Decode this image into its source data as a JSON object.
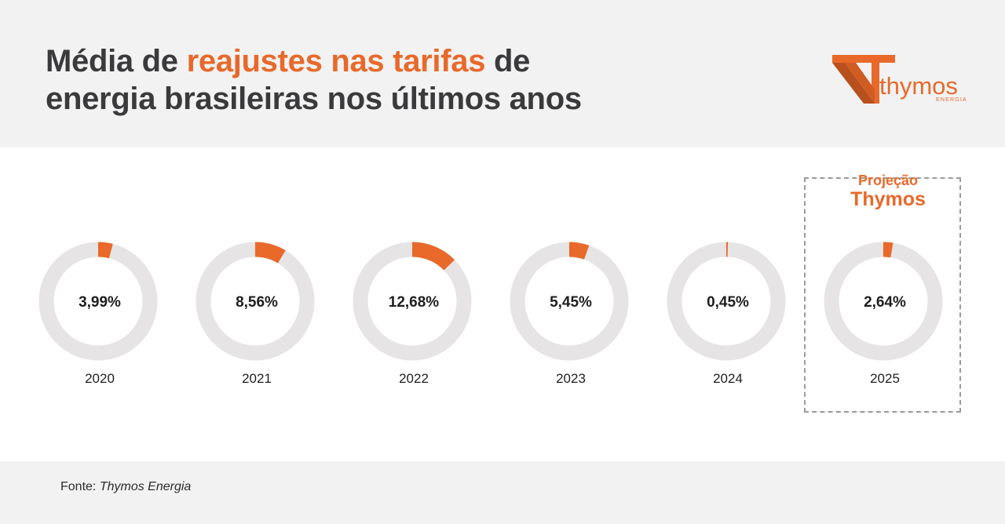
{
  "header": {
    "title_part1": "Média de ",
    "title_highlight": "reajustes nas tarifas",
    "title_part2": " de",
    "title_line2": "energia brasileiras nos últimos anos"
  },
  "logo": {
    "name": "thymos",
    "subtitle": "ENERGIA"
  },
  "projection": {
    "line1": "Projeção",
    "line2": "Thymos"
  },
  "colors": {
    "accent": "#e8692a",
    "track": "#e6e4e4",
    "text": "#3a3a3c"
  },
  "chart_data": {
    "type": "pie",
    "variant": "donut",
    "max": 100,
    "categories": [
      "2020",
      "2021",
      "2022",
      "2023",
      "2024",
      "2025"
    ],
    "values": [
      3.99,
      8.56,
      12.68,
      5.45,
      0.45,
      2.64
    ],
    "labels": [
      "3,99%",
      "8,56%",
      "12,68%",
      "5,45%",
      "0,45%",
      "2,64%"
    ],
    "highlighted_category": "2025"
  },
  "footer": {
    "source_label": "Fonte: ",
    "source_value": "Thymos Energia"
  }
}
